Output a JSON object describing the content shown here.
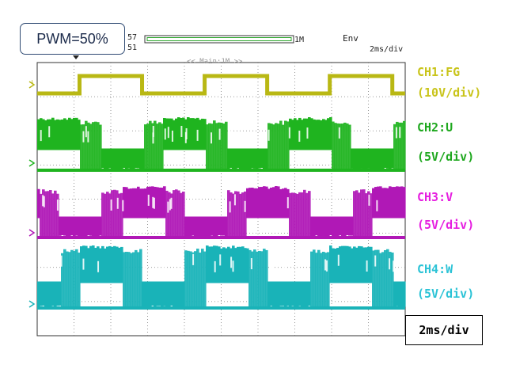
{
  "header": {
    "left_text_top": "57",
    "left_text_bottom": "51",
    "memory_label": "1M",
    "env_label": "Env",
    "timebase": "2ms/div",
    "zoom_label": "<< Main:1M >>"
  },
  "callout": {
    "label": "PWM=50%"
  },
  "timebox": {
    "label": "2ms/div"
  },
  "colors": {
    "ch1": "#b9b814",
    "ch2": "#1fb41f",
    "ch3": "#b018b6",
    "ch4": "#19b3b8",
    "grid": "#7a7a7a"
  },
  "chart_data": {
    "type": "line",
    "x_unit_per_div": "2ms",
    "grid_divisions": {
      "x": 10,
      "y": 8
    },
    "series": [
      {
        "name": "CH1:FG",
        "scale": "(10V/div)",
        "kind": "square",
        "period_div": 3.4,
        "duty": 0.5,
        "high_start_div": [
          1.15,
          4.55,
          7.95
        ]
      },
      {
        "name": "CH2:U",
        "scale": "(5V/div)",
        "kind": "pwm-phase"
      },
      {
        "name": "CH3:V",
        "scale": "(5V/div)",
        "kind": "pwm-phase"
      },
      {
        "name": "CH4:W",
        "scale": "(5V/div)",
        "kind": "pwm-phase"
      }
    ]
  }
}
